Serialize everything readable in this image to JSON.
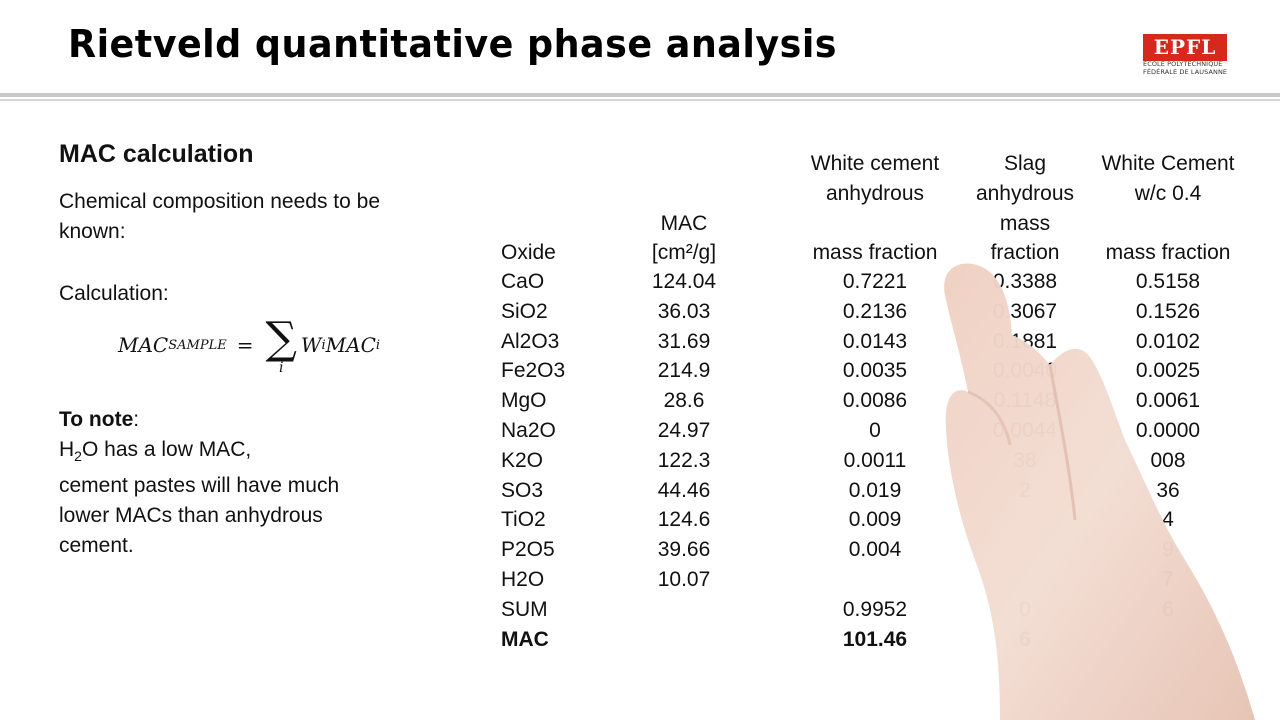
{
  "title": "Rietveld quantitative phase analysis",
  "logo": {
    "mark": "EPFL",
    "line1": "ÉCOLE POLYTECHNIQUE",
    "line2": "FÉDÉRALE DE LAUSANNE"
  },
  "left": {
    "heading": "MAC calculation",
    "intro_line1": "Chemical composition needs to be",
    "intro_line2": "known:",
    "calc_label": "Calculation:",
    "formula": {
      "lhs": "MAC",
      "lhs_sub": "SAMPLE",
      "eq": "=",
      "sigma": "∑",
      "index": "i",
      "w": "W",
      "w_sub": "i",
      "mac": "MAC",
      "mac_sub": "i"
    },
    "note_label": "To note",
    "note_colon": ":",
    "note_h": "H",
    "note_h_sub": "2",
    "note_o": "O has a low MAC,",
    "note_line2": "cement pastes will have much",
    "note_line3": "lower MACs than anhydrous",
    "note_line4": "cement."
  },
  "table": {
    "headers": {
      "oxide": "Oxide",
      "mac_line1": "MAC",
      "mac_line2": "[cm²/g]",
      "wc_line1": "White cement",
      "wc_line2": "anhydrous",
      "wc_line3": "mass fraction",
      "slag_line1": "Slag",
      "slag_line2": "anhydrous",
      "slag_line3": "mass",
      "slag_line4": "fraction",
      "wcw_line1": "White Cement",
      "wcw_line2": "w/c 0.4",
      "wcw_line3": "mass fraction"
    },
    "rows": [
      {
        "oxide": "CaO",
        "mac": "124.04",
        "wc": "0.7221",
        "slag": "0.3388",
        "wcw": "0.5158"
      },
      {
        "oxide": "SiO2",
        "mac": "36.03",
        "wc": "0.2136",
        "slag": "0.3067",
        "wcw": "0.1526"
      },
      {
        "oxide": "Al2O3",
        "mac": "31.69",
        "wc": "0.0143",
        "slag": "0.1881",
        "wcw": "0.0102"
      },
      {
        "oxide": "Fe2O3",
        "mac": "214.9",
        "wc": "0.0035",
        "slag": "0.0040",
        "wcw": "0.0025"
      },
      {
        "oxide": "MgO",
        "mac": "28.6",
        "wc": "0.0086",
        "slag": "0.1148",
        "wcw": "0.0061"
      },
      {
        "oxide": "Na2O",
        "mac": "24.97",
        "wc": "0",
        "slag": "0.0044",
        "wcw": "0.0000"
      },
      {
        "oxide": "K2O",
        "mac": "122.3",
        "wc": "0.0011",
        "slag": "38",
        "wcw": "008"
      },
      {
        "oxide": "SO3",
        "mac": "44.46",
        "wc": "0.019",
        "slag": "2",
        "wcw": "36"
      },
      {
        "oxide": "TiO2",
        "mac": "124.6",
        "wc": "0.009",
        "slag": "",
        "wcw": "4"
      },
      {
        "oxide": "P2O5",
        "mac": "39.66",
        "wc": "0.004",
        "slag": "",
        "wcw": "9"
      },
      {
        "oxide": "H2O",
        "mac": "10.07",
        "wc": "",
        "slag": "",
        "wcw": "7"
      },
      {
        "oxide": "SUM",
        "mac": "",
        "wc": "0.9952",
        "slag": "0",
        "wcw": "6"
      },
      {
        "oxide": "MAC",
        "mac": "",
        "wc": "101.46",
        "slag": "6",
        "wcw": "",
        "bold": true
      }
    ]
  }
}
